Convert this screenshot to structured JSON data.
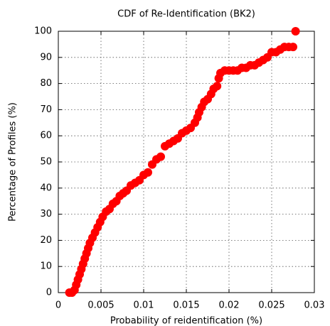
{
  "chart_data": {
    "type": "scatter",
    "title": "CDF of Re-Identification (BK2)",
    "x_label": "Probability of reidentification (%)",
    "y_label": "Percentage of Profiles (%)",
    "color": "#ff0000",
    "grid": true,
    "xlim": [
      0,
      0.03
    ],
    "xticks": [
      0,
      0.005,
      0.01,
      0.015,
      0.02,
      0.025,
      0.03
    ],
    "ylim": [
      0,
      100
    ],
    "yticks": [
      0,
      10,
      20,
      30,
      40,
      50,
      60,
      70,
      80,
      90,
      100
    ],
    "x": [
      0.0013,
      0.0016,
      0.0019,
      0.0021,
      0.0023,
      0.0025,
      0.0027,
      0.0029,
      0.0031,
      0.0033,
      0.0035,
      0.0037,
      0.004,
      0.0043,
      0.0046,
      0.0049,
      0.0052,
      0.0056,
      0.006,
      0.0064,
      0.0068,
      0.0072,
      0.0076,
      0.008,
      0.0085,
      0.009,
      0.0095,
      0.01,
      0.0105,
      0.011,
      0.0115,
      0.012,
      0.0125,
      0.013,
      0.0135,
      0.014,
      0.0145,
      0.015,
      0.0155,
      0.016,
      0.0163,
      0.0165,
      0.0168,
      0.0171,
      0.0175,
      0.0179,
      0.0182,
      0.0186,
      0.0188,
      0.019,
      0.0195,
      0.02,
      0.0205,
      0.021,
      0.0215,
      0.022,
      0.0225,
      0.023,
      0.0235,
      0.024,
      0.0245,
      0.025,
      0.0255,
      0.026,
      0.0265,
      0.027,
      0.0275,
      0.0278
    ],
    "values": [
      0,
      0,
      1,
      3,
      5,
      7,
      9,
      11,
      13,
      15,
      17,
      19,
      21,
      23,
      25,
      27,
      29,
      31,
      32,
      34,
      35,
      37,
      38,
      39,
      41,
      42,
      43,
      45,
      46,
      49,
      51,
      52,
      56,
      57,
      58,
      59,
      61,
      62,
      63,
      65,
      67,
      69,
      71,
      73,
      74,
      76,
      78,
      79,
      82,
      84,
      85,
      85,
      85,
      85,
      86,
      86,
      87,
      87,
      88,
      89,
      90,
      92,
      92,
      93,
      94,
      94,
      94,
      100
    ]
  }
}
